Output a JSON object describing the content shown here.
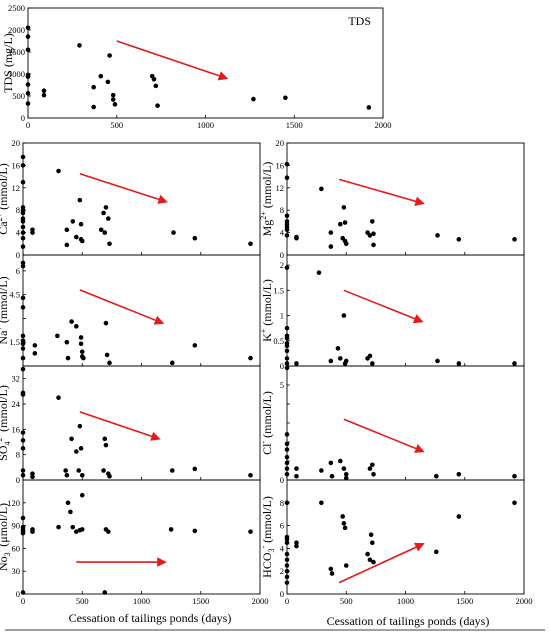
{
  "colors": {
    "points": "#000000",
    "trend_arrow": "#e41a1c",
    "separator": "#000000"
  },
  "x_axis_label": "Cessation of tailings ponds (days)",
  "chart_data": [
    {
      "id": "tds",
      "type": "scatter",
      "title": "TDS",
      "ylabel": "TDS (mg/L)",
      "xlim": [
        0,
        2000
      ],
      "ylim": [
        0,
        2500
      ],
      "xticks": [
        "0",
        "500",
        "1000",
        "1500",
        "2000"
      ],
      "yticks": [
        "0",
        "500",
        "1000",
        "1500",
        "2000",
        "2500"
      ],
      "points": [
        [
          0,
          2050
        ],
        [
          0,
          1850
        ],
        [
          0,
          1550
        ],
        [
          0,
          980
        ],
        [
          0,
          940
        ],
        [
          0,
          760
        ],
        [
          0,
          560
        ],
        [
          0,
          330
        ],
        [
          90,
          620
        ],
        [
          90,
          520
        ],
        [
          290,
          1650
        ],
        [
          370,
          700
        ],
        [
          370,
          250
        ],
        [
          410,
          950
        ],
        [
          450,
          820
        ],
        [
          460,
          1420
        ],
        [
          480,
          520
        ],
        [
          480,
          420
        ],
        [
          490,
          310
        ],
        [
          700,
          950
        ],
        [
          710,
          880
        ],
        [
          720,
          730
        ],
        [
          730,
          280
        ],
        [
          1270,
          430
        ],
        [
          1450,
          460
        ],
        [
          1920,
          240
        ]
      ],
      "trend": {
        "from": [
          500,
          1750
        ],
        "to": [
          1120,
          900
        ],
        "direction": "decreasing"
      }
    },
    {
      "id": "ca",
      "type": "scatter",
      "ylabel": "Ca2+ (mmol/L)",
      "ylabel_parts": {
        "base": "Ca",
        "sup": "2+",
        "unit": " (mmol/L)"
      },
      "xlim": [
        0,
        2000
      ],
      "ylim": [
        0,
        20
      ],
      "yticks": [
        "0",
        "4",
        "8",
        "12",
        "16",
        "20"
      ],
      "points": [
        [
          0,
          17.5
        ],
        [
          0,
          16
        ],
        [
          0,
          13
        ],
        [
          0,
          8.5
        ],
        [
          0,
          8
        ],
        [
          0,
          7.5
        ],
        [
          0,
          6.5
        ],
        [
          0,
          6
        ],
        [
          0,
          5
        ],
        [
          0,
          4
        ],
        [
          0,
          3
        ],
        [
          0,
          1.5
        ],
        [
          80,
          4.5
        ],
        [
          80,
          4
        ],
        [
          300,
          15
        ],
        [
          370,
          4.5
        ],
        [
          370,
          1.8
        ],
        [
          420,
          6
        ],
        [
          450,
          3.2
        ],
        [
          480,
          9.8
        ],
        [
          490,
          5.5
        ],
        [
          490,
          2.8
        ],
        [
          500,
          2.5
        ],
        [
          660,
          4.5
        ],
        [
          680,
          7.5
        ],
        [
          690,
          4
        ],
        [
          700,
          8.5
        ],
        [
          720,
          6.5
        ],
        [
          730,
          2
        ],
        [
          1270,
          4
        ],
        [
          1450,
          3
        ],
        [
          1920,
          2
        ]
      ],
      "trend": {
        "from": [
          480,
          14.5
        ],
        "to": [
          1210,
          9.5
        ],
        "direction": "decreasing"
      }
    },
    {
      "id": "mg",
      "type": "scatter",
      "ylabel": "Mg2+ (mmol/L)",
      "ylabel_parts": {
        "base": "Mg",
        "sup": "2+",
        "unit": " (mmol/L)"
      },
      "xlim": [
        0,
        2000
      ],
      "ylim": [
        0,
        20
      ],
      "yticks": [
        "0",
        "4",
        "8",
        "12",
        "16",
        "20"
      ],
      "points": [
        [
          0,
          16.2
        ],
        [
          0,
          13.8
        ],
        [
          0,
          7
        ],
        [
          0,
          6
        ],
        [
          0,
          5.5
        ],
        [
          0,
          5
        ],
        [
          0,
          4.5
        ],
        [
          0,
          3.5
        ],
        [
          80,
          3.2
        ],
        [
          80,
          3
        ],
        [
          290,
          11.8
        ],
        [
          370,
          4
        ],
        [
          370,
          1.5
        ],
        [
          450,
          5.5
        ],
        [
          470,
          3
        ],
        [
          480,
          8.5
        ],
        [
          490,
          5.8
        ],
        [
          490,
          2.5
        ],
        [
          500,
          2
        ],
        [
          680,
          4
        ],
        [
          700,
          3.5
        ],
        [
          720,
          6
        ],
        [
          730,
          3.8
        ],
        [
          730,
          1.8
        ],
        [
          1270,
          3.5
        ],
        [
          1450,
          2.8
        ],
        [
          1920,
          2.8
        ]
      ],
      "trend": {
        "from": [
          440,
          13.5
        ],
        "to": [
          1150,
          9.2
        ],
        "direction": "decreasing"
      }
    },
    {
      "id": "na",
      "type": "scatter",
      "ylabel": "Na+ (mmol/L)",
      "ylabel_parts": {
        "base": "Na",
        "sup": "+",
        "unit": " (mmol/L)"
      },
      "xlim": [
        0,
        2000
      ],
      "ylim": [
        0,
        7
      ],
      "yticks": [
        "",
        "1.5",
        "",
        "4.5",
        "6"
      ],
      "ytick_values": [
        0,
        1.5,
        3,
        4.5,
        6
      ],
      "points": [
        [
          0,
          6.5
        ],
        [
          0,
          6.3
        ],
        [
          0,
          4.3
        ],
        [
          0,
          3.7
        ],
        [
          0,
          1.9
        ],
        [
          0,
          1.6
        ],
        [
          0,
          1.4
        ],
        [
          0,
          1.1
        ],
        [
          0,
          0.5
        ],
        [
          100,
          1.3
        ],
        [
          100,
          0.8
        ],
        [
          290,
          1.9
        ],
        [
          370,
          1.5
        ],
        [
          380,
          0.5
        ],
        [
          410,
          2.8
        ],
        [
          450,
          2.5
        ],
        [
          490,
          1.8
        ],
        [
          490,
          1.4
        ],
        [
          500,
          0.9
        ],
        [
          500,
          0.6
        ],
        [
          510,
          0.5
        ],
        [
          700,
          2.7
        ],
        [
          710,
          0.7
        ],
        [
          730,
          0.2
        ],
        [
          1260,
          0.2
        ],
        [
          1450,
          1.3
        ],
        [
          1920,
          0.5
        ]
      ],
      "trend": {
        "from": [
          480,
          4.8
        ],
        "to": [
          1180,
          2.7
        ],
        "direction": "decreasing"
      }
    },
    {
      "id": "k",
      "type": "scatter",
      "ylabel": "K+ (mmol/L)",
      "ylabel_parts": {
        "base": "K",
        "sup": "+",
        "unit": " (mmol/L)"
      },
      "xlim": [
        0,
        2000
      ],
      "ylim": [
        0,
        2.2
      ],
      "yticks": [
        "0",
        "0.5",
        "1",
        "1.5",
        "2"
      ],
      "ytick_values": [
        0,
        0.5,
        1,
        1.5,
        2
      ],
      "points": [
        [
          0,
          1.95
        ],
        [
          0,
          0.75
        ],
        [
          0,
          0.6
        ],
        [
          0,
          0.55
        ],
        [
          0,
          0.45
        ],
        [
          0,
          0.4
        ],
        [
          0,
          0.3
        ],
        [
          0,
          0.15
        ],
        [
          0,
          0.05
        ],
        [
          80,
          0.05
        ],
        [
          270,
          1.85
        ],
        [
          370,
          0.1
        ],
        [
          430,
          0.35
        ],
        [
          450,
          0.15
        ],
        [
          480,
          1.0
        ],
        [
          490,
          0.05
        ],
        [
          500,
          0.1
        ],
        [
          680,
          0.15
        ],
        [
          700,
          0.2
        ],
        [
          720,
          0.05
        ],
        [
          1270,
          0.1
        ],
        [
          1450,
          0.05
        ],
        [
          1920,
          0.05
        ]
      ],
      "trend": {
        "from": [
          480,
          1.5
        ],
        "to": [
          1140,
          0.88
        ],
        "direction": "decreasing"
      }
    },
    {
      "id": "so4",
      "type": "scatter",
      "ylabel": "SO42- (mmol/L)",
      "ylabel_parts": {
        "base": "SO",
        "sub": "4",
        "sup": "2-",
        "unit": " (mmol/L)"
      },
      "xlim": [
        0,
        2000
      ],
      "ylim": [
        0,
        36
      ],
      "yticks": [
        "0",
        "8",
        "16",
        "24",
        "32"
      ],
      "ytick_values": [
        0,
        8,
        16,
        24,
        32
      ],
      "points": [
        [
          0,
          35
        ],
        [
          0,
          27.5
        ],
        [
          0,
          27
        ],
        [
          0,
          15
        ],
        [
          0,
          12.5
        ],
        [
          0,
          10
        ],
        [
          0,
          3
        ],
        [
          0,
          1.5
        ],
        [
          80,
          2
        ],
        [
          80,
          1
        ],
        [
          300,
          26
        ],
        [
          360,
          3
        ],
        [
          370,
          1.5
        ],
        [
          410,
          13
        ],
        [
          450,
          9
        ],
        [
          470,
          3
        ],
        [
          480,
          17
        ],
        [
          490,
          10
        ],
        [
          500,
          1.5
        ],
        [
          680,
          3
        ],
        [
          690,
          13
        ],
        [
          700,
          11
        ],
        [
          720,
          2
        ],
        [
          730,
          1.2
        ],
        [
          1260,
          3
        ],
        [
          1450,
          3.5
        ],
        [
          1920,
          1.5
        ]
      ],
      "trend": {
        "from": [
          480,
          21.5
        ],
        "to": [
          1150,
          13
        ],
        "direction": "decreasing"
      }
    },
    {
      "id": "cl",
      "type": "scatter",
      "ylabel": "Cl- (mmol/L)",
      "ylabel_parts": {
        "base": "Cl",
        "sup": "-",
        "unit": " (mmol/L)"
      },
      "xlim": [
        0,
        2000
      ],
      "ylim": [
        0,
        6
      ],
      "yticks": [
        "0",
        "",
        "",
        "",
        "",
        "5"
      ],
      "ytick_values": [
        0,
        1,
        2,
        3,
        4,
        5
      ],
      "points": [
        [
          0,
          5.9
        ],
        [
          0,
          2.4
        ],
        [
          0,
          1.9
        ],
        [
          0,
          1.6
        ],
        [
          0,
          1.2
        ],
        [
          0,
          0.9
        ],
        [
          0,
          0.6
        ],
        [
          0,
          0.3
        ],
        [
          80,
          0.6
        ],
        [
          80,
          0.2
        ],
        [
          290,
          0.5
        ],
        [
          370,
          0.9
        ],
        [
          380,
          0.2
        ],
        [
          450,
          1.0
        ],
        [
          480,
          0.6
        ],
        [
          500,
          0.3
        ],
        [
          500,
          0.1
        ],
        [
          700,
          0.6
        ],
        [
          720,
          0.8
        ],
        [
          730,
          0.3
        ],
        [
          1260,
          0.2
        ],
        [
          1450,
          0.3
        ],
        [
          1920,
          0.2
        ]
      ],
      "trend": {
        "from": [
          480,
          3.2
        ],
        "to": [
          1150,
          1.5
        ],
        "direction": "decreasing"
      }
    },
    {
      "id": "no3",
      "type": "scatter",
      "ylabel": "No3- (μmol/L)",
      "ylabel_parts": {
        "base": "No",
        "sub": "3",
        "sup": "-",
        "unit": " (μmol/L)"
      },
      "xlim": [
        0,
        2000
      ],
      "ylim": [
        0,
        150
      ],
      "yticks": [
        "0",
        "30",
        "60",
        "90",
        "120"
      ],
      "ytick_values": [
        0,
        30,
        60,
        90,
        120
      ],
      "points": [
        [
          0,
          100
        ],
        [
          0,
          88
        ],
        [
          0,
          85
        ],
        [
          0,
          82
        ],
        [
          0,
          80
        ],
        [
          0,
          2
        ],
        [
          80,
          85
        ],
        [
          80,
          82
        ],
        [
          300,
          88
        ],
        [
          380,
          120
        ],
        [
          400,
          108
        ],
        [
          420,
          88
        ],
        [
          450,
          82
        ],
        [
          480,
          84
        ],
        [
          500,
          130
        ],
        [
          500,
          85
        ],
        [
          690,
          2
        ],
        [
          700,
          85
        ],
        [
          720,
          82
        ],
        [
          1250,
          85
        ],
        [
          1450,
          83
        ],
        [
          1920,
          82
        ]
      ],
      "trend": {
        "from": [
          450,
          42
        ],
        "to": [
          1200,
          42
        ],
        "direction": "flat"
      }
    },
    {
      "id": "hco3",
      "type": "scatter",
      "ylabel": "HCO3- (mmol/L)",
      "ylabel_parts": {
        "base": "HCO",
        "sub": "3",
        "sup": "-",
        "unit": " (mmol/L)"
      },
      "xlim": [
        0,
        2000
      ],
      "ylim": [
        0,
        10
      ],
      "yticks": [
        "0",
        "2",
        "4",
        "6",
        "8"
      ],
      "ytick_values": [
        0,
        2,
        4,
        6,
        8
      ],
      "points": [
        [
          0,
          8
        ],
        [
          0,
          5
        ],
        [
          0,
          4.8
        ],
        [
          0,
          4.5
        ],
        [
          0,
          3.5
        ],
        [
          0,
          3
        ],
        [
          0,
          2.5
        ],
        [
          0,
          2
        ],
        [
          0,
          1.5
        ],
        [
          0,
          1
        ],
        [
          80,
          4.5
        ],
        [
          80,
          4.2
        ],
        [
          290,
          8
        ],
        [
          370,
          2.2
        ],
        [
          380,
          1.8
        ],
        [
          470,
          6.8
        ],
        [
          480,
          6.2
        ],
        [
          490,
          5.8
        ],
        [
          500,
          2.5
        ],
        [
          680,
          3.5
        ],
        [
          700,
          3
        ],
        [
          710,
          5.2
        ],
        [
          720,
          4.5
        ],
        [
          730,
          2.8
        ],
        [
          1260,
          3.7
        ],
        [
          1450,
          6.8
        ],
        [
          1920,
          8
        ]
      ],
      "trend": {
        "from": [
          440,
          1.0
        ],
        "to": [
          1150,
          4.4
        ],
        "direction": "increasing"
      }
    }
  ]
}
